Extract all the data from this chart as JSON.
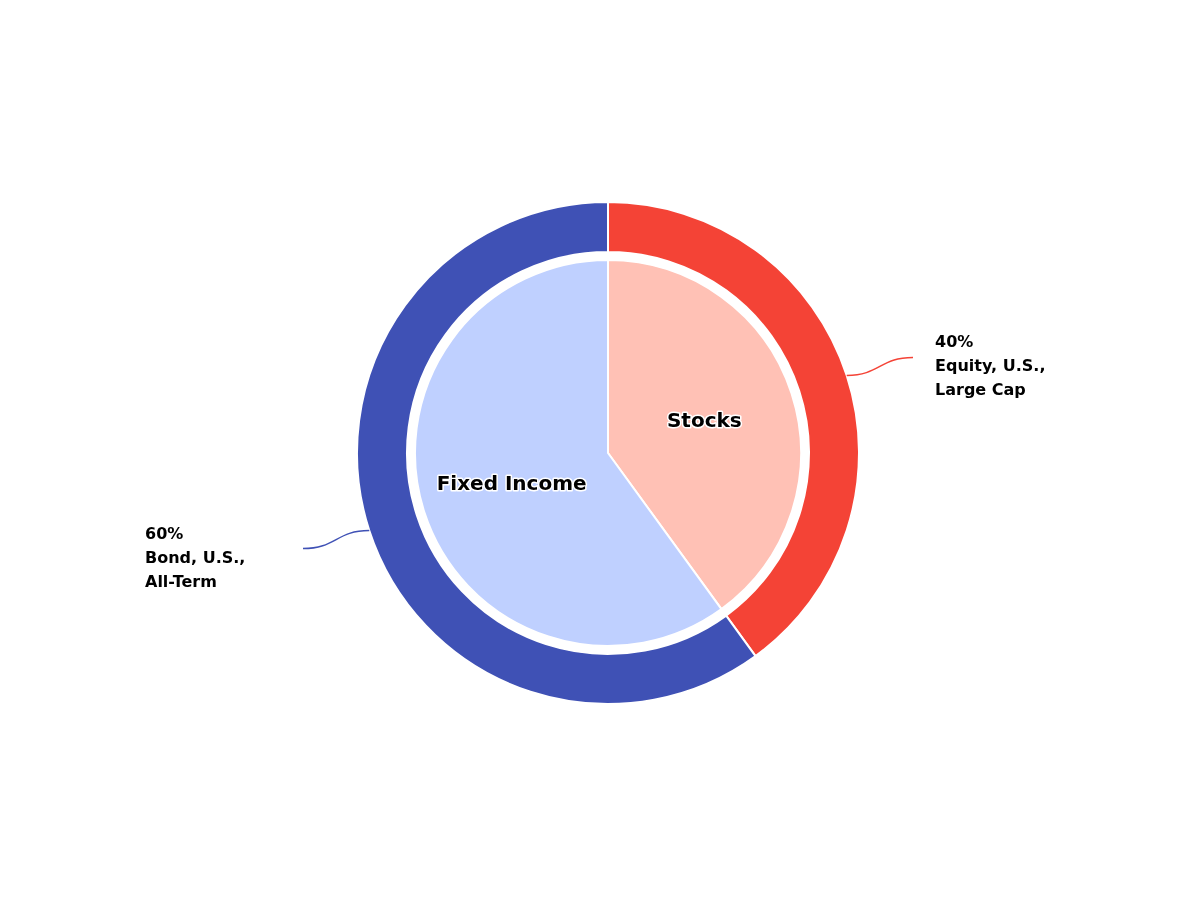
{
  "chart_data": [
    {
      "type": "pie",
      "categories": [
        "Stocks",
        "Fixed Income"
      ],
      "values": [
        40,
        60
      ],
      "colors": [
        "#ffc1b5",
        "#bfd0ff"
      ]
    },
    {
      "type": "donut",
      "categories": [
        "Equity, U.S., Large Cap",
        "Bond, U.S., All-Term"
      ],
      "values": [
        40,
        60
      ],
      "value_labels": [
        "40%",
        "60%"
      ],
      "colors": [
        "#f44336",
        "#3f51b5"
      ]
    }
  ]
}
